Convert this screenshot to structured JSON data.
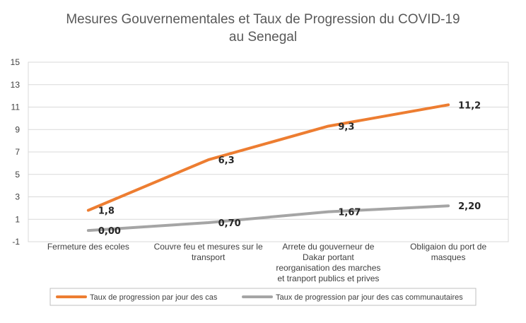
{
  "chart_data": {
    "type": "line",
    "title_lines": [
      "Mesures Gouvernementales et Taux de Progression du COVID-19",
      "au Senegal"
    ],
    "categories": [
      [
        "Fermeture des ecoles"
      ],
      [
        "Couvre feu et mesures sur le",
        "transport"
      ],
      [
        "Arrete du gouverneur de",
        "Dakar portant",
        "reorganisation des marches",
        "et tranport publics et prives"
      ],
      [
        "Obligaion du port de",
        "masques"
      ]
    ],
    "y_ticks": [
      "15",
      "13",
      "11",
      "9",
      "7",
      "5",
      "3",
      "1",
      "-1"
    ],
    "ylim": [
      -1,
      15
    ],
    "grid": true,
    "legend_position": "bottom",
    "series": [
      {
        "name": "Taux de progression par jour des cas",
        "color": "#ED7D31",
        "values": [
          1.8,
          6.3,
          9.3,
          11.2
        ],
        "labels": [
          "1,8",
          "6,3",
          "9,3",
          "11,2"
        ]
      },
      {
        "name": "Taux de progression par jour des cas communautaires",
        "color": "#A5A5A5",
        "values": [
          0.0,
          0.7,
          1.67,
          2.2
        ],
        "labels": [
          "0,00",
          "0,70",
          "1,67",
          "2,20"
        ]
      }
    ]
  }
}
